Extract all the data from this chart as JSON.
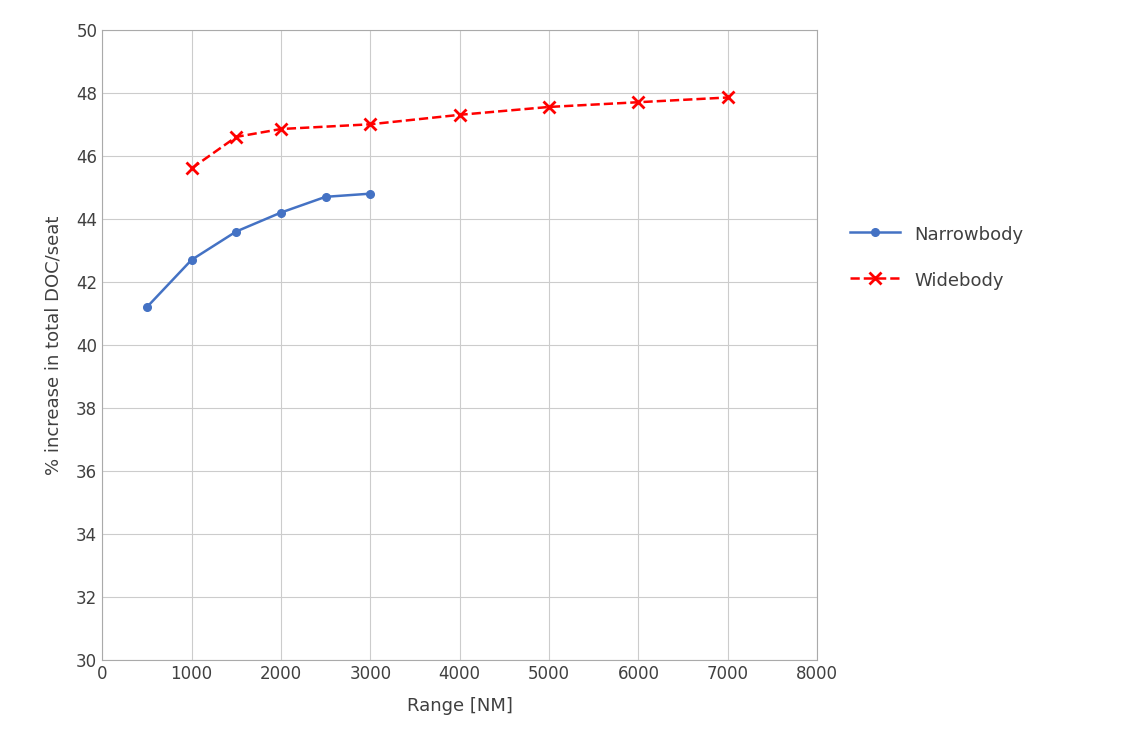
{
  "narrowbody_x": [
    500,
    1000,
    1500,
    2000,
    2500,
    3000
  ],
  "narrowbody_y": [
    41.2,
    42.7,
    43.6,
    44.2,
    44.7,
    44.8
  ],
  "widebody_x": [
    1000,
    1500,
    2000,
    3000,
    4000,
    5000,
    6000,
    7000
  ],
  "widebody_y": [
    45.6,
    46.6,
    46.85,
    47.0,
    47.3,
    47.55,
    47.7,
    47.85
  ],
  "narrowbody_color": "#4472C4",
  "widebody_color": "#FF0000",
  "narrowbody_label": "Narrowbody",
  "widebody_label": "Widebody",
  "xlabel": "Range [NM]",
  "ylabel": "% increase in total DOC/seat",
  "xlim": [
    0,
    8000
  ],
  "ylim": [
    30,
    50
  ],
  "xticks": [
    0,
    1000,
    2000,
    3000,
    4000,
    5000,
    6000,
    7000,
    8000
  ],
  "yticks": [
    30,
    32,
    34,
    36,
    38,
    40,
    42,
    44,
    46,
    48,
    50
  ],
  "background_color": "#FFFFFF",
  "grid_color": "#CCCCCC"
}
